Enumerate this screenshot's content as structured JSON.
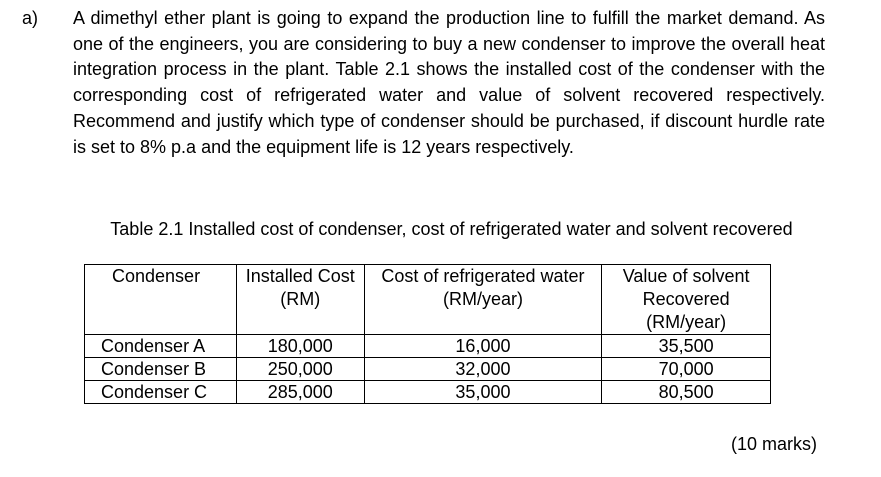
{
  "question": {
    "label": "a)",
    "text": "A dimethyl ether plant is going to expand the production line to fulfill the market demand. As one of the engineers, you are considering to buy a new condenser to improve the overall heat integration process in the plant. Table 2.1 shows the installed cost of the condenser with the corresponding cost of refrigerated water and value of solvent recovered respectively. Recommend and justify which type of condenser should be purchased, if discount hurdle rate is set to 8% p.a and the equipment life is 12 years respectively."
  },
  "table": {
    "caption": "Table 2.1 Installed cost of condenser, cost of refrigerated water and solvent recovered",
    "headers": [
      "Condenser",
      "Installed Cost (RM)",
      "Cost of refrigerated water (RM/year)",
      "Value of solvent Recovered (RM/year)"
    ],
    "rows": [
      [
        "Condenser A",
        "180,000",
        "16,000",
        "35,500"
      ],
      [
        "Condenser B",
        "250,000",
        "32,000",
        "70,000"
      ],
      [
        "Condenser C",
        "285,000",
        "35,000",
        "80,500"
      ]
    ]
  },
  "marks": "(10 marks)"
}
